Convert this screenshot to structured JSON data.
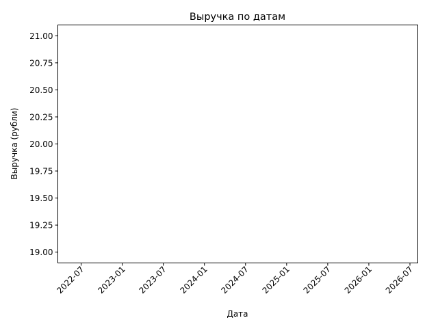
{
  "chart_data": {
    "type": "line",
    "title": "Выручка по датам",
    "xlabel": "Дата",
    "ylabel": "Выручка (рубли)",
    "x_ticks": [
      "2022-07",
      "2023-01",
      "2023-07",
      "2024-01",
      "2024-07",
      "2025-01",
      "2025-07",
      "2026-01",
      "2026-07"
    ],
    "y_ticks": [
      "19.00",
      "19.25",
      "19.50",
      "19.75",
      "20.00",
      "20.25",
      "20.50",
      "20.75",
      "21.00"
    ],
    "ylim": [
      18.9,
      21.1
    ],
    "series": [],
    "grid": false,
    "legend": false
  }
}
